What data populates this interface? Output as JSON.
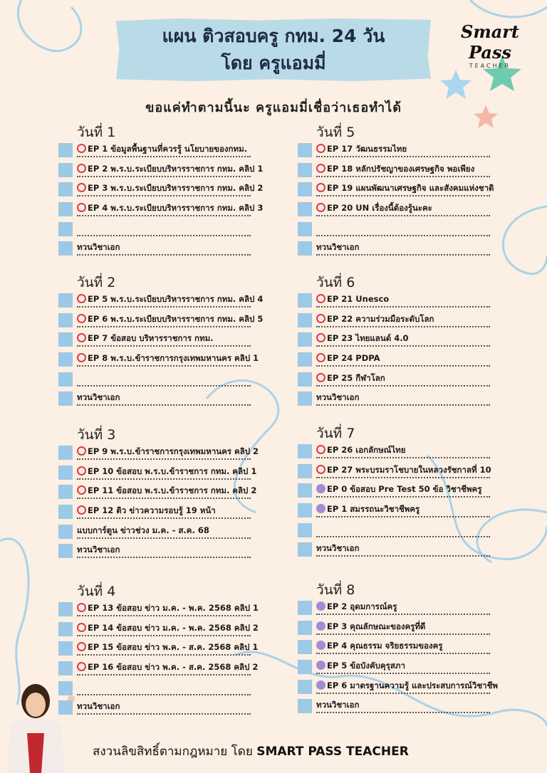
{
  "title": {
    "line1": "แผน ติวสอบครู กทม. 24 วัน",
    "line2": "โดย ครูแอมมี่"
  },
  "logo": {
    "name": "Smart Pass",
    "sub": "TEACHER"
  },
  "subtitle": "ขอแค่ทำตามนี้นะ ครูแอมมี่เชื่อว่าเธอทำได้",
  "colors": {
    "box": "#9cc9e6",
    "red_marker": "#d93b4a",
    "purple_marker": "#a58ad6",
    "banner": "#b9dbe7",
    "background": "#fcefe3"
  },
  "days": [
    {
      "label": "วันที่ 1",
      "items": [
        {
          "m": "red",
          "t": "EP 1 ข้อมูลพื้นฐานที่ควรรู้ นโยบายของกทม."
        },
        {
          "m": "red",
          "t": "EP 2 พ.ร.บ.ระเบียบบริหารราชการ กทม. คลิป 1"
        },
        {
          "m": "red",
          "t": "EP 3 พ.ร.บ.ระเบียบบริหารราชการ กทม. คลิป 2"
        },
        {
          "m": "red",
          "t": "EP 4 พ.ร.บ.ระเบียบบริหารราชการ กทม. คลิป 3"
        },
        {
          "m": "",
          "t": ""
        },
        {
          "m": "",
          "t": "ทวนวิชาเอก"
        }
      ]
    },
    {
      "label": "วันที่ 2",
      "items": [
        {
          "m": "red",
          "t": "EP 5 พ.ร.บ.ระเบียบบริหารราชการ กทม. คลิป 4"
        },
        {
          "m": "red",
          "t": "EP 6 พ.ร.บ.ระเบียบบริหารราชการ กทม. คลิป 5"
        },
        {
          "m": "red",
          "t": "EP 7 ข้อสอบ บริหารราชการ กทม."
        },
        {
          "m": "red",
          "t": "EP 8 พ.ร.บ.ข้าราชการกรุงเทพมหานคร คลิป 1"
        },
        {
          "m": "",
          "t": ""
        },
        {
          "m": "",
          "t": "ทวนวิชาเอก"
        }
      ]
    },
    {
      "label": "วันที่ 3",
      "items": [
        {
          "m": "red",
          "t": "EP 9 พ.ร.บ.ข้าราชการกรุงเทพมหานคร คลิป 2"
        },
        {
          "m": "red",
          "t": "EP 10 ข้อสอบ พ.ร.บ.ข้าราชการ กทม. คลิป 1"
        },
        {
          "m": "red",
          "t": "EP 11 ข้อสอบ พ.ร.บ.ข้าราชการ กทม. คลิป 2"
        },
        {
          "m": "red",
          "t": "EP 12 ติว ข่าวความรอบรู้ 19 หน้า"
        },
        {
          "m": "",
          "t": "แบบการ์ตูน ข่าวช่วง ม.ค. - ส.ค. 68"
        },
        {
          "m": "",
          "t": "ทวนวิชาเอก"
        }
      ]
    },
    {
      "label": "วันที่ 4",
      "items": [
        {
          "m": "red",
          "t": "EP 13 ข้อสอบ ข่าว ม.ค. - พ.ค. 2568 คลิป 1"
        },
        {
          "m": "red",
          "t": "EP 14 ข้อสอบ ข่าว ม.ค. - พ.ค. 2568 คลิป 2"
        },
        {
          "m": "red",
          "t": "EP 15 ข้อสอบ ข่าว พ.ค. - ส.ค. 2568 คลิป 1"
        },
        {
          "m": "red",
          "t": "EP 16 ข้อสอบ ข่าว พ.ค. - ส.ค. 2568 คลิป 2"
        },
        {
          "m": "",
          "t": ""
        },
        {
          "m": "",
          "t": "ทวนวิชาเอก"
        }
      ]
    },
    {
      "label": "วันที่ 5",
      "items": [
        {
          "m": "red",
          "t": "EP 17 วัฒนธรรมไทย"
        },
        {
          "m": "red",
          "t": "EP 18 หลักปรัชญาของเศรษฐกิจ พอเพียง"
        },
        {
          "m": "red",
          "t": "EP 19 แผนพัฒนาเศรษฐกิจ และสังคมแห่งชาติ"
        },
        {
          "m": "red",
          "t": "EP 20 UN เรื่องนี้ต้องรู้นะคะ"
        },
        {
          "m": "",
          "t": ""
        },
        {
          "m": "",
          "t": "ทวนวิชาเอก"
        }
      ]
    },
    {
      "label": "วันที่ 6",
      "items": [
        {
          "m": "red",
          "t": "EP 21 Unesco"
        },
        {
          "m": "red",
          "t": "EP 22 ความร่วมมือระดับโลก"
        },
        {
          "m": "red",
          "t": "EP 23 ไทยแลนด์ 4.0"
        },
        {
          "m": "red",
          "t": "EP 24 PDPA"
        },
        {
          "m": "red",
          "t": "EP 25 กีฬาโลก"
        },
        {
          "m": "",
          "t": "ทวนวิชาเอก"
        }
      ]
    },
    {
      "label": "วันที่ 7",
      "items": [
        {
          "m": "red",
          "t": "EP 26 เอกลักษณ์ไทย"
        },
        {
          "m": "red",
          "t": "EP 27 พระบรมราโชบายในหลวงรัชกาลที่ 10"
        },
        {
          "m": "purple",
          "t": "EP 0 ข้อสอบ Pre Test 50 ข้อ วิชาชีพครู"
        },
        {
          "m": "purple",
          "t": "EP 1 สมรรถนะวิชาชีพครู"
        },
        {
          "m": "",
          "t": ""
        },
        {
          "m": "",
          "t": "ทวนวิชาเอก"
        }
      ]
    },
    {
      "label": "วันที่ 8",
      "items": [
        {
          "m": "purple",
          "t": "EP 2 อุดมการณ์ครู"
        },
        {
          "m": "purple",
          "t": "EP 3 คุณลักษณะของครูที่ดี"
        },
        {
          "m": "purple",
          "t": "EP 4 คุณธรรม จริยธรรมของครู"
        },
        {
          "m": "purple",
          "t": "EP 5 ข้อบังคับคุรุสภา"
        },
        {
          "m": "purple",
          "t": "EP 6 มาตรฐานความรู้ และประสบการณ์วิชาชีพ"
        },
        {
          "m": "",
          "t": "ทวนวิชาเอก"
        }
      ]
    }
  ],
  "footer": {
    "prefix": "สงวนลิขสิทธิ์ตามกฎหมาย โดย",
    "brand": "SMART PASS TEACHER"
  }
}
